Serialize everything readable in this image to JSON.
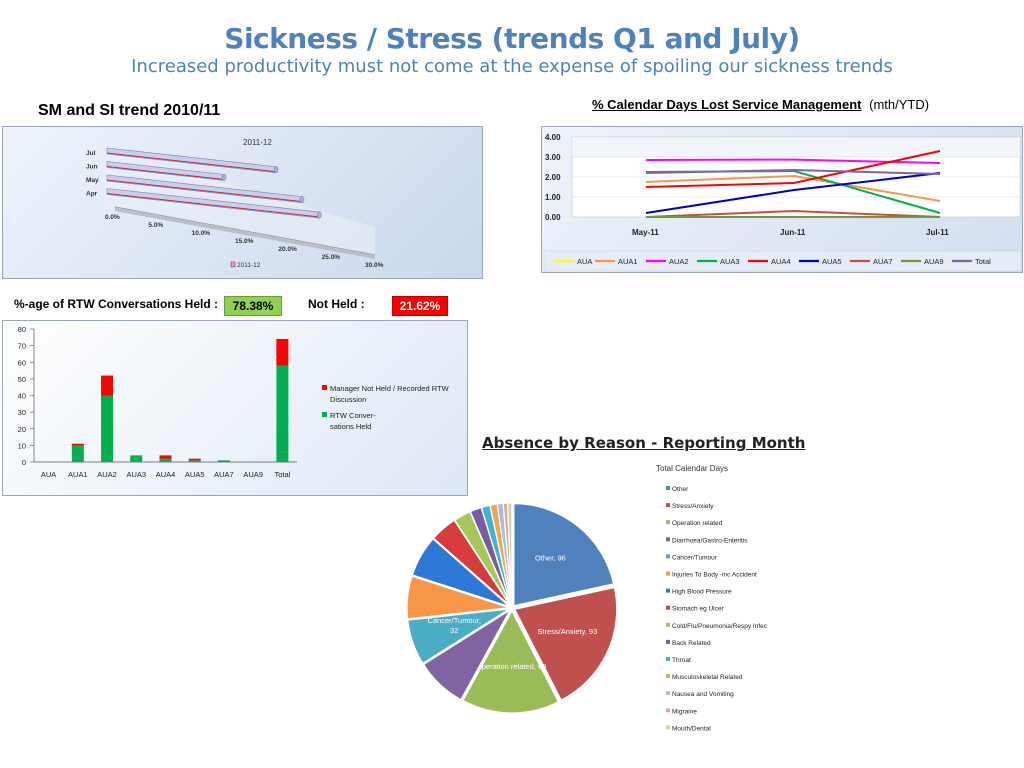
{
  "page": {
    "title": "Sickness / Stress (trends Q1 and July)",
    "subtitle": "Increased productivity must not come at the expense of spoiling our sickness trends"
  },
  "sm_si": {
    "heading": "SM and SI trend 2010/11"
  },
  "cal_days": {
    "heading": "% Calendar Days Lost Service Management",
    "heading_suffix": "(mth/YTD)"
  },
  "rtw": {
    "heading": "%-age of RTW Conversations Held :",
    "held_value": "78.38%",
    "not_held_label": "Not Held :",
    "not_held_value": "21.62%"
  },
  "absence": {
    "heading": "Absence by Reason - Reporting Month"
  },
  "colors": {
    "title": "#4f81bd",
    "held_green": "#92d050",
    "not_held_red": "#ff0000"
  },
  "chart_data": [
    {
      "id": "sm_si",
      "type": "bar",
      "orientation": "horizontal",
      "title": "2011-12",
      "categories": [
        "Jul",
        "Jun",
        "May",
        "Apr"
      ],
      "series": [
        {
          "name": "2011-12",
          "values": [
            19.5,
            13.5,
            22.5,
            24.5
          ]
        }
      ],
      "x_ticks": [
        "0.0%",
        "5.0%",
        "10.0%",
        "15.0%",
        "20.0%",
        "25.0%",
        "30.0%"
      ],
      "xlim": [
        0,
        30
      ],
      "legend": "bottom",
      "color": "#c9a9c9"
    },
    {
      "id": "cal_days",
      "type": "line",
      "categories": [
        "May-11",
        "Jun-11",
        "Jul-11"
      ],
      "ylim": [
        0,
        4
      ],
      "y_ticks": [
        "4.00",
        "3.00",
        "2.00",
        "1.00",
        "0.00"
      ],
      "legend": "bottom",
      "series": [
        {
          "name": "AUA",
          "color": "#ffff00",
          "values": [
            0.0,
            0.0,
            0.0
          ]
        },
        {
          "name": "AUA1",
          "color": "#f79646",
          "values": [
            1.75,
            2.05,
            0.8
          ]
        },
        {
          "name": "AUA2",
          "color": "#ff00ff",
          "values": [
            2.85,
            2.87,
            2.7
          ]
        },
        {
          "name": "AUA3",
          "color": "#00b050",
          "values": [
            2.25,
            2.3,
            0.2
          ]
        },
        {
          "name": "AUA4",
          "color": "#ff0000",
          "values": [
            1.5,
            1.7,
            3.3
          ]
        },
        {
          "name": "AUA5",
          "color": "#0000cc",
          "values": [
            0.2,
            1.35,
            2.2
          ]
        },
        {
          "name": "AUA7",
          "color": "#c0504d",
          "values": [
            0.0,
            0.3,
            0.0
          ]
        },
        {
          "name": "AUA9",
          "color": "#77933c",
          "values": [
            0.0,
            0.0,
            0.0
          ]
        },
        {
          "name": "Total",
          "color": "#8064a2",
          "values": [
            2.2,
            2.35,
            2.15
          ]
        }
      ]
    },
    {
      "id": "rtw",
      "type": "bar",
      "stacked": true,
      "categories": [
        "AUA",
        "AUA1",
        "AUA2",
        "AUA3",
        "AUA4",
        "AUA5",
        "AUA7",
        "AUA9",
        "Total"
      ],
      "ylim": [
        0,
        80
      ],
      "y_ticks": [
        "80",
        "70",
        "60",
        "50",
        "40",
        "30",
        "20",
        "10",
        "0"
      ],
      "legend": "right",
      "series": [
        {
          "name": "RTW Conver-sations Held",
          "color": "#00b050",
          "values": [
            0,
            10,
            40,
            4,
            2,
            1,
            1,
            0,
            58
          ]
        },
        {
          "name": "Manager Not Held / Recorded RTW Discussion",
          "color": "#ff0000",
          "values": [
            0,
            1,
            12,
            0,
            2,
            1,
            0,
            0,
            16
          ]
        }
      ],
      "legend_labels": [
        [
          "Manager  Not Held / Recorded RTW",
          "Discussion"
        ],
        [
          "RTW Conver-",
          "sations Held"
        ]
      ]
    },
    {
      "id": "absence",
      "type": "pie",
      "subtitle": "Total Calendar Days",
      "legend": "right",
      "slices": [
        {
          "label": "Other",
          "value": 96,
          "color": "#4f81bd",
          "data_label": "Other, 96"
        },
        {
          "label": "Stress/Anxiety",
          "value": 93,
          "color": "#c0504d",
          "data_label": "Stress/Anxiety, 93"
        },
        {
          "label": "Operation related",
          "value": 69,
          "color": "#9bbb59",
          "data_label": "Operation related, 69"
        },
        {
          "label": "Diarrhoea/Gastro-Enteritis",
          "value": 36,
          "color": "#8064a2"
        },
        {
          "label": "Cancer/Tumour",
          "value": 32,
          "color": "#4bacc6",
          "data_label": "Cancer/Tumour,\n32"
        },
        {
          "label": "Injuries To Body -inc Accident",
          "value": 30,
          "color": "#f79646"
        },
        {
          "label": "High Blood Pressure",
          "value": 29,
          "color": "#2c7ad6"
        },
        {
          "label": "Stomach eg Ulcer",
          "value": 19,
          "color": "#d63c3c"
        },
        {
          "label": "Cold/Flu/Pneumonia/Respy  Infec",
          "value": 12,
          "color": "#a6c85a"
        },
        {
          "label": "Back Related",
          "value": 8,
          "color": "#7a5aa6"
        },
        {
          "label": "Throat",
          "value": 6,
          "color": "#3cb4d2"
        },
        {
          "label": "Musculoskeletal Related",
          "value": 5,
          "color": "#f7a24b"
        },
        {
          "label": "Nausea and Vomiting",
          "value": 4,
          "color": "#a9bde0"
        },
        {
          "label": "Migraine",
          "value": 3,
          "color": "#e0a6a6"
        },
        {
          "label": "Mouth/Dental",
          "value": 3,
          "color": "#c9d9a5"
        }
      ]
    }
  ]
}
